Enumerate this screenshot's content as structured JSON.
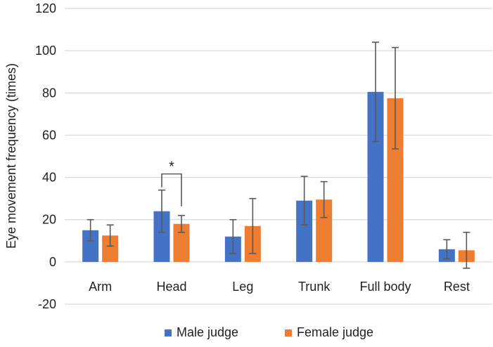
{
  "chart_data": {
    "type": "bar",
    "title": "",
    "xlabel": "",
    "ylabel": "Eye movement frequency (times)",
    "ylim": [
      -20,
      120
    ],
    "yticks": [
      -20,
      0,
      20,
      40,
      60,
      80,
      100,
      120
    ],
    "grid": true,
    "legend_position": "bottom",
    "categories": [
      "Arm",
      "Head",
      "Leg",
      "Trunk",
      "Full body",
      "Rest"
    ],
    "series": [
      {
        "name": "Male judge",
        "color": "#4472C4",
        "values": [
          15,
          24,
          12,
          29,
          80.5,
          6
        ],
        "error": [
          5,
          10,
          8,
          11.5,
          23.5,
          4.5
        ]
      },
      {
        "name": "Female judge",
        "color": "#ED7D31",
        "values": [
          12.5,
          18,
          17,
          29.5,
          77.5,
          5.5
        ],
        "error": [
          5,
          4,
          13,
          8.5,
          24,
          8.5
        ]
      }
    ],
    "annotations": [
      {
        "text": "*",
        "category": "Head",
        "type": "significance-bracket"
      }
    ]
  }
}
